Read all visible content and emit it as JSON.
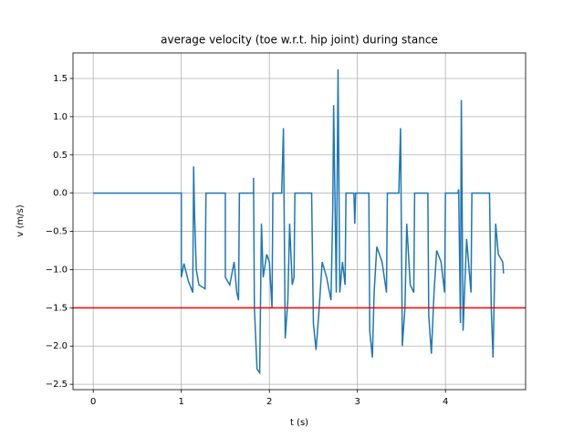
{
  "chart_data": {
    "type": "line",
    "title": "average velocity (toe w.r.t. hip joint) during stance",
    "xlabel": "t (s)",
    "ylabel": "v (m/s)",
    "xlim": [
      -0.23,
      4.91
    ],
    "ylim": [
      -2.57,
      1.834
    ],
    "xticks": [
      0,
      1,
      2,
      3,
      4
    ],
    "yticks": [
      {
        "value": -2.5,
        "label": "−2.5"
      },
      {
        "value": -2,
        "label": "−2.0"
      },
      {
        "value": -1.5,
        "label": "−1.5"
      },
      {
        "value": -1,
        "label": "−1.0"
      },
      {
        "value": -0.5,
        "label": "−0.5"
      },
      {
        "value": 0,
        "label": "0.0"
      },
      0.5,
      {
        "value": 1,
        "label": "1.0"
      },
      1.5
    ],
    "grid": true,
    "hline": {
      "value": -1.5,
      "color": "#ff0000"
    },
    "series": [
      {
        "color": "#1f77b4",
        "x": [
          0,
          1.0,
          1.0,
          1.03,
          1.08,
          1.13,
          1.14,
          1.15,
          1.17,
          1.2,
          1.27,
          1.28,
          1.5,
          1.5,
          1.55,
          1.6,
          1.63,
          1.65,
          1.66,
          1.82,
          1.82,
          1.83,
          1.86,
          1.89,
          1.91,
          1.93,
          1.97,
          2.0,
          2.03,
          2.04,
          2.14,
          2.16,
          2.18,
          2.21,
          2.23,
          2.26,
          2.28,
          2.29,
          2.48,
          2.5,
          2.53,
          2.56,
          2.6,
          2.65,
          2.7,
          2.72,
          2.73,
          2.76,
          2.78,
          2.8,
          2.83,
          2.86,
          2.87,
          2.96,
          2.97,
          2.98,
          3.13,
          3.14,
          3.17,
          3.19,
          3.22,
          3.28,
          3.33,
          3.34,
          3.47,
          3.49,
          3.51,
          3.54,
          3.56,
          3.6,
          3.64,
          3.65,
          3.8,
          3.81,
          3.84,
          3.87,
          3.9,
          3.95,
          3.99,
          4.0,
          4.14,
          4.15,
          4.17,
          4.18,
          4.2,
          4.24,
          4.29,
          4.3,
          4.5,
          4.52,
          4.54,
          4.57,
          4.6,
          4.65,
          4.66
        ],
        "values": [
          0,
          0,
          -1.1,
          -0.92,
          -1.15,
          -1.3,
          0.35,
          -0.25,
          -1.0,
          -1.2,
          -1.25,
          0,
          0,
          -1.1,
          -1.2,
          -0.9,
          -1.3,
          -1.4,
          0,
          0,
          0.2,
          -1.5,
          -2.3,
          -2.35,
          -0.4,
          -1.1,
          -0.8,
          -0.9,
          -1.5,
          0,
          0,
          0.85,
          -1.9,
          -1.4,
          -0.4,
          -1.2,
          -1.1,
          0,
          0,
          -1.7,
          -2.05,
          -1.6,
          -0.9,
          -1.1,
          -1.4,
          -0.2,
          1.15,
          -1.3,
          1.62,
          -1.3,
          -0.9,
          -1.2,
          0,
          0,
          -0.4,
          0,
          0,
          -1.8,
          -2.15,
          -1.3,
          -0.7,
          -0.9,
          -1.3,
          0,
          0,
          0.85,
          -2.0,
          -1.5,
          -0.4,
          -1.2,
          -1.3,
          0,
          0,
          -1.6,
          -2.1,
          -1.3,
          -0.75,
          -0.9,
          -1.3,
          0,
          0,
          0.05,
          -1.7,
          1.22,
          -1.8,
          -0.6,
          -1.3,
          0,
          0,
          -1.5,
          -2.15,
          -0.4,
          -0.8,
          -0.9,
          -1.05
        ]
      }
    ]
  }
}
